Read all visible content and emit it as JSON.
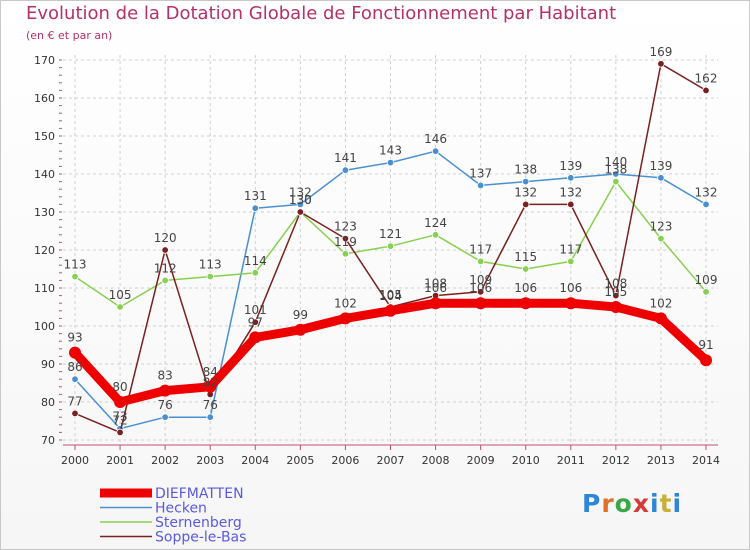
{
  "title": "Evolution de la Dotation Globale de Fonctionnement par Habitant",
  "subtitle": "(en € et par an)",
  "brand": "Proxiti",
  "colors": {
    "title": "#b5306a",
    "grid": "#d0d0d0",
    "axis": "#c05070",
    "legend_text": "#5a5ae0"
  },
  "chart_data": {
    "type": "line",
    "title": "Evolution de la Dotation Globale de Fonctionnement par Habitant",
    "subtitle": "(en € et par an)",
    "xlabel": "",
    "ylabel": "",
    "ylim": [
      70,
      170
    ],
    "yticks": [
      70,
      80,
      90,
      100,
      110,
      120,
      130,
      140,
      150,
      160,
      170
    ],
    "grid": true,
    "legend_position": "bottom-left",
    "categories": [
      "2000",
      "2001",
      "2002",
      "2003",
      "2004",
      "2005",
      "2006",
      "2007",
      "2008",
      "2009",
      "2010",
      "2011",
      "2012",
      "2013",
      "2014"
    ],
    "series": [
      {
        "name": "DIEFMATTEN",
        "color": "#ee0000",
        "bold": true,
        "values": [
          93,
          80,
          83,
          84,
          97,
          99,
          102,
          104,
          106,
          106,
          106,
          106,
          105,
          102,
          91
        ]
      },
      {
        "name": "Hecken",
        "color": "#4a90d0",
        "bold": false,
        "values": [
          86,
          73,
          76,
          76,
          131,
          132,
          141,
          143,
          146,
          137,
          138,
          139,
          140,
          139,
          132
        ]
      },
      {
        "name": "Sternenberg",
        "color": "#88d050",
        "bold": false,
        "values": [
          113,
          105,
          112,
          113,
          114,
          130,
          119,
          121,
          124,
          117,
          115,
          117,
          138,
          123,
          109
        ]
      },
      {
        "name": "Soppe-le-Bas",
        "color": "#7a2020",
        "bold": false,
        "values": [
          77,
          72,
          120,
          82,
          101,
          130,
          123,
          105,
          108,
          109,
          132,
          132,
          108,
          169,
          162
        ]
      }
    ]
  }
}
